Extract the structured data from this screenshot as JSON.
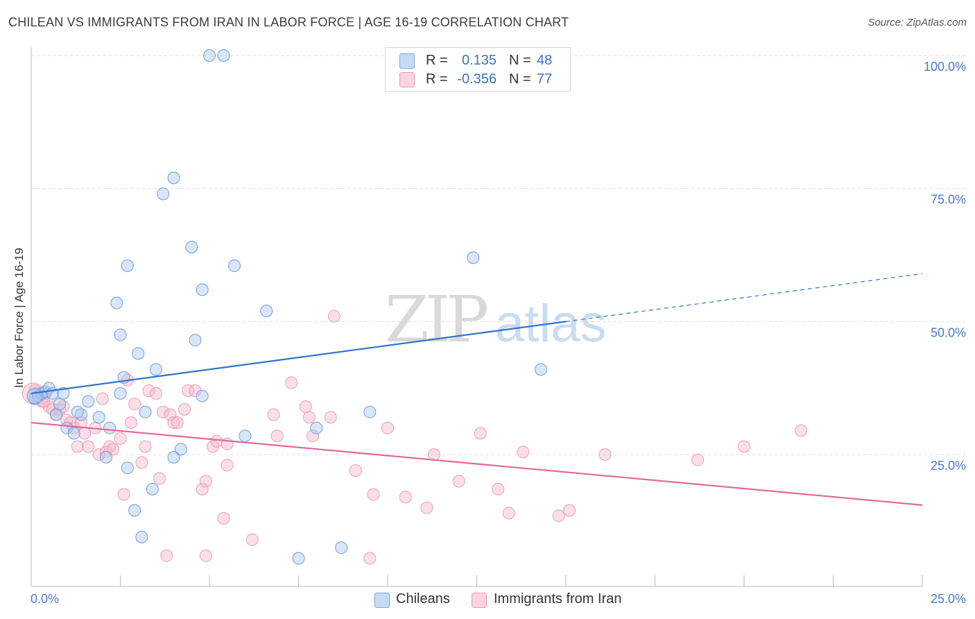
{
  "header": {
    "title": "CHILEAN VS IMMIGRANTS FROM IRAN IN LABOR FORCE | AGE 16-19 CORRELATION CHART",
    "source": "Source: ZipAtlas.com"
  },
  "watermark": {
    "zip": "ZIP",
    "atlas": "atlas"
  },
  "legend": {
    "r_label": "R =",
    "n_label": "N =",
    "rows": [
      {
        "r": "0.135",
        "n": "48",
        "color": "#a9c8f0"
      },
      {
        "r": "-0.356",
        "n": "77",
        "color": "#f6b8cc"
      }
    ]
  },
  "bottom_legend": {
    "series1": "Chileans",
    "series2": "Immigrants from Iran"
  },
  "colors": {
    "blue_line": "#2f72d0",
    "pink_line": "#e2679a",
    "blue_point": "#a9c8f0",
    "pink_point": "#f6b8cc",
    "tick": "#4a7bc8"
  },
  "chart_data": {
    "type": "scatter",
    "title": "CHILEAN VS IMMIGRANTS FROM IRAN IN LABOR FORCE | AGE 16-19 CORRELATION CHART",
    "xlabel": "",
    "ylabel": "In Labor Force | Age 16-19",
    "xlim": [
      0,
      25
    ],
    "ylim": [
      0,
      105
    ],
    "x_tick_labels": {
      "min": "0.0%",
      "max": "25.0%"
    },
    "y_ticks": [
      {
        "value": 25,
        "label": "25.0%"
      },
      {
        "value": 50,
        "label": "50.0%"
      },
      {
        "value": 75,
        "label": "75.0%"
      },
      {
        "value": 100,
        "label": "100.0%"
      }
    ],
    "grid": true,
    "legend_position": "top-center",
    "series": [
      {
        "name": "Chileans",
        "r": 0.135,
        "n": 48,
        "trend": {
          "x": [
            0,
            15
          ],
          "y": [
            36.5,
            50.0
          ]
        },
        "trend_dashed": {
          "x": [
            15,
            25
          ],
          "y": [
            50.0,
            59.0
          ]
        },
        "points": [
          [
            0.1,
            35.5
          ],
          [
            0.2,
            36
          ],
          [
            0.3,
            36.5
          ],
          [
            0.4,
            36.8
          ],
          [
            0.5,
            37.5
          ],
          [
            0.6,
            36.5
          ],
          [
            0.7,
            32.5
          ],
          [
            0.8,
            34.5
          ],
          [
            0.9,
            36.5
          ],
          [
            1.0,
            30.0
          ],
          [
            1.2,
            29.0
          ],
          [
            1.4,
            32.5
          ],
          [
            1.6,
            35.0
          ],
          [
            1.9,
            32.0
          ],
          [
            2.1,
            24.5
          ],
          [
            2.2,
            30.0
          ],
          [
            2.4,
            53.5
          ],
          [
            2.5,
            47.5
          ],
          [
            2.5,
            36.5
          ],
          [
            2.6,
            39.5
          ],
          [
            2.7,
            60.5
          ],
          [
            2.7,
            22.5
          ],
          [
            2.9,
            14.5
          ],
          [
            3.0,
            44.0
          ],
          [
            3.1,
            9.5
          ],
          [
            3.2,
            33.0
          ],
          [
            3.4,
            18.5
          ],
          [
            3.5,
            41.0
          ],
          [
            3.7,
            74.0
          ],
          [
            4.0,
            77.0
          ],
          [
            4.0,
            24.5
          ],
          [
            4.2,
            26.0
          ],
          [
            4.5,
            64.0
          ],
          [
            4.6,
            46.5
          ],
          [
            4.8,
            56.0
          ],
          [
            4.8,
            36.0
          ],
          [
            5.0,
            100.0
          ],
          [
            5.4,
            100.0
          ],
          [
            5.7,
            60.5
          ],
          [
            6.0,
            28.5
          ],
          [
            6.6,
            52.0
          ],
          [
            7.5,
            5.5
          ],
          [
            8.0,
            30.0
          ],
          [
            8.7,
            7.5
          ],
          [
            9.5,
            33.0
          ],
          [
            12.4,
            62.0
          ],
          [
            14.3,
            41.0
          ],
          [
            1.3,
            33.0
          ]
        ]
      },
      {
        "name": "Immigrants from Iran",
        "r": -0.356,
        "n": 77,
        "trend": {
          "x": [
            0,
            25
          ],
          "y": [
            31.0,
            15.5
          ]
        },
        "points": [
          [
            0.1,
            37.0
          ],
          [
            0.2,
            35.5
          ],
          [
            0.3,
            35.0
          ],
          [
            0.4,
            36.5
          ],
          [
            0.5,
            34.0
          ],
          [
            0.6,
            33.5
          ],
          [
            0.7,
            32.5
          ],
          [
            0.8,
            33.5
          ],
          [
            0.9,
            34.0
          ],
          [
            1.0,
            31.5
          ],
          [
            1.1,
            31.0
          ],
          [
            1.2,
            30.0
          ],
          [
            1.3,
            26.5
          ],
          [
            1.4,
            31.0
          ],
          [
            1.5,
            29.0
          ],
          [
            1.6,
            26.5
          ],
          [
            1.8,
            30.0
          ],
          [
            1.9,
            25.0
          ],
          [
            2.0,
            35.5
          ],
          [
            2.1,
            25.5
          ],
          [
            2.2,
            26.5
          ],
          [
            2.3,
            26.0
          ],
          [
            2.5,
            28.0
          ],
          [
            2.6,
            17.5
          ],
          [
            2.7,
            39.0
          ],
          [
            2.8,
            31.0
          ],
          [
            2.9,
            34.5
          ],
          [
            3.1,
            23.5
          ],
          [
            3.2,
            26.5
          ],
          [
            3.3,
            37.0
          ],
          [
            3.5,
            36.5
          ],
          [
            3.6,
            20.5
          ],
          [
            3.7,
            33.0
          ],
          [
            3.8,
            6.0
          ],
          [
            3.9,
            32.5
          ],
          [
            4.0,
            31.0
          ],
          [
            4.1,
            31.0
          ],
          [
            4.3,
            33.5
          ],
          [
            4.4,
            37.0
          ],
          [
            4.6,
            37.0
          ],
          [
            4.8,
            18.5
          ],
          [
            4.9,
            6.0
          ],
          [
            4.9,
            20.0
          ],
          [
            5.1,
            26.5
          ],
          [
            5.2,
            27.5
          ],
          [
            5.4,
            13.0
          ],
          [
            5.5,
            27.0
          ],
          [
            5.5,
            23.0
          ],
          [
            6.2,
            9.0
          ],
          [
            6.8,
            32.5
          ],
          [
            6.9,
            28.5
          ],
          [
            7.3,
            38.5
          ],
          [
            7.7,
            34.0
          ],
          [
            7.8,
            32.0
          ],
          [
            7.9,
            28.5
          ],
          [
            8.4,
            32.0
          ],
          [
            8.5,
            51.0
          ],
          [
            9.1,
            22.0
          ],
          [
            9.5,
            5.5
          ],
          [
            9.6,
            17.5
          ],
          [
            10.0,
            30.0
          ],
          [
            10.5,
            17.0
          ],
          [
            11.1,
            15.0
          ],
          [
            11.3,
            25.0
          ],
          [
            12.0,
            20.0
          ],
          [
            12.6,
            29.0
          ],
          [
            13.1,
            18.5
          ],
          [
            13.4,
            14.0
          ],
          [
            13.8,
            25.5
          ],
          [
            14.8,
            13.5
          ],
          [
            15.1,
            14.5
          ],
          [
            16.1,
            25.0
          ],
          [
            18.7,
            24.0
          ],
          [
            20.0,
            26.5
          ],
          [
            21.6,
            29.5
          ],
          [
            0.15,
            36.5
          ],
          [
            0.35,
            35.0
          ]
        ]
      }
    ]
  }
}
